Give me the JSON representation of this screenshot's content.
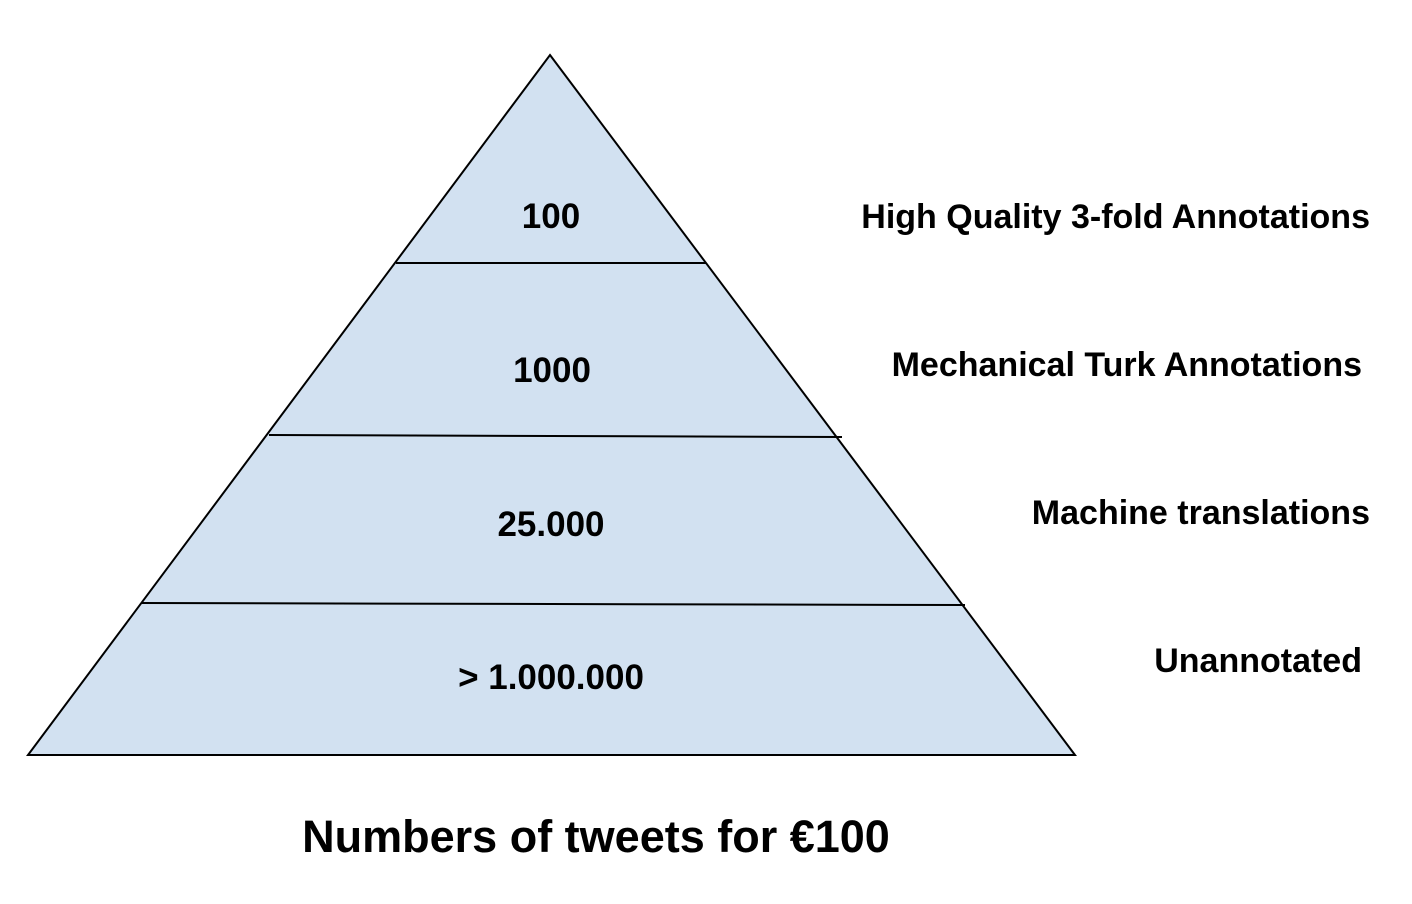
{
  "colors": {
    "pyramid_fill": "#d2e1f1",
    "outline": "#000000",
    "text": "#000000",
    "background": "#ffffff"
  },
  "tiers": [
    {
      "count": "100",
      "description": "High Quality 3-fold Annotations"
    },
    {
      "count": "1000",
      "description": "Mechanical Turk Annotations"
    },
    {
      "count": "25.000",
      "description": "Machine translations"
    },
    {
      "count": "> 1.000.000",
      "description": "Unannotated"
    }
  ],
  "caption": "Numbers of tweets for €100"
}
